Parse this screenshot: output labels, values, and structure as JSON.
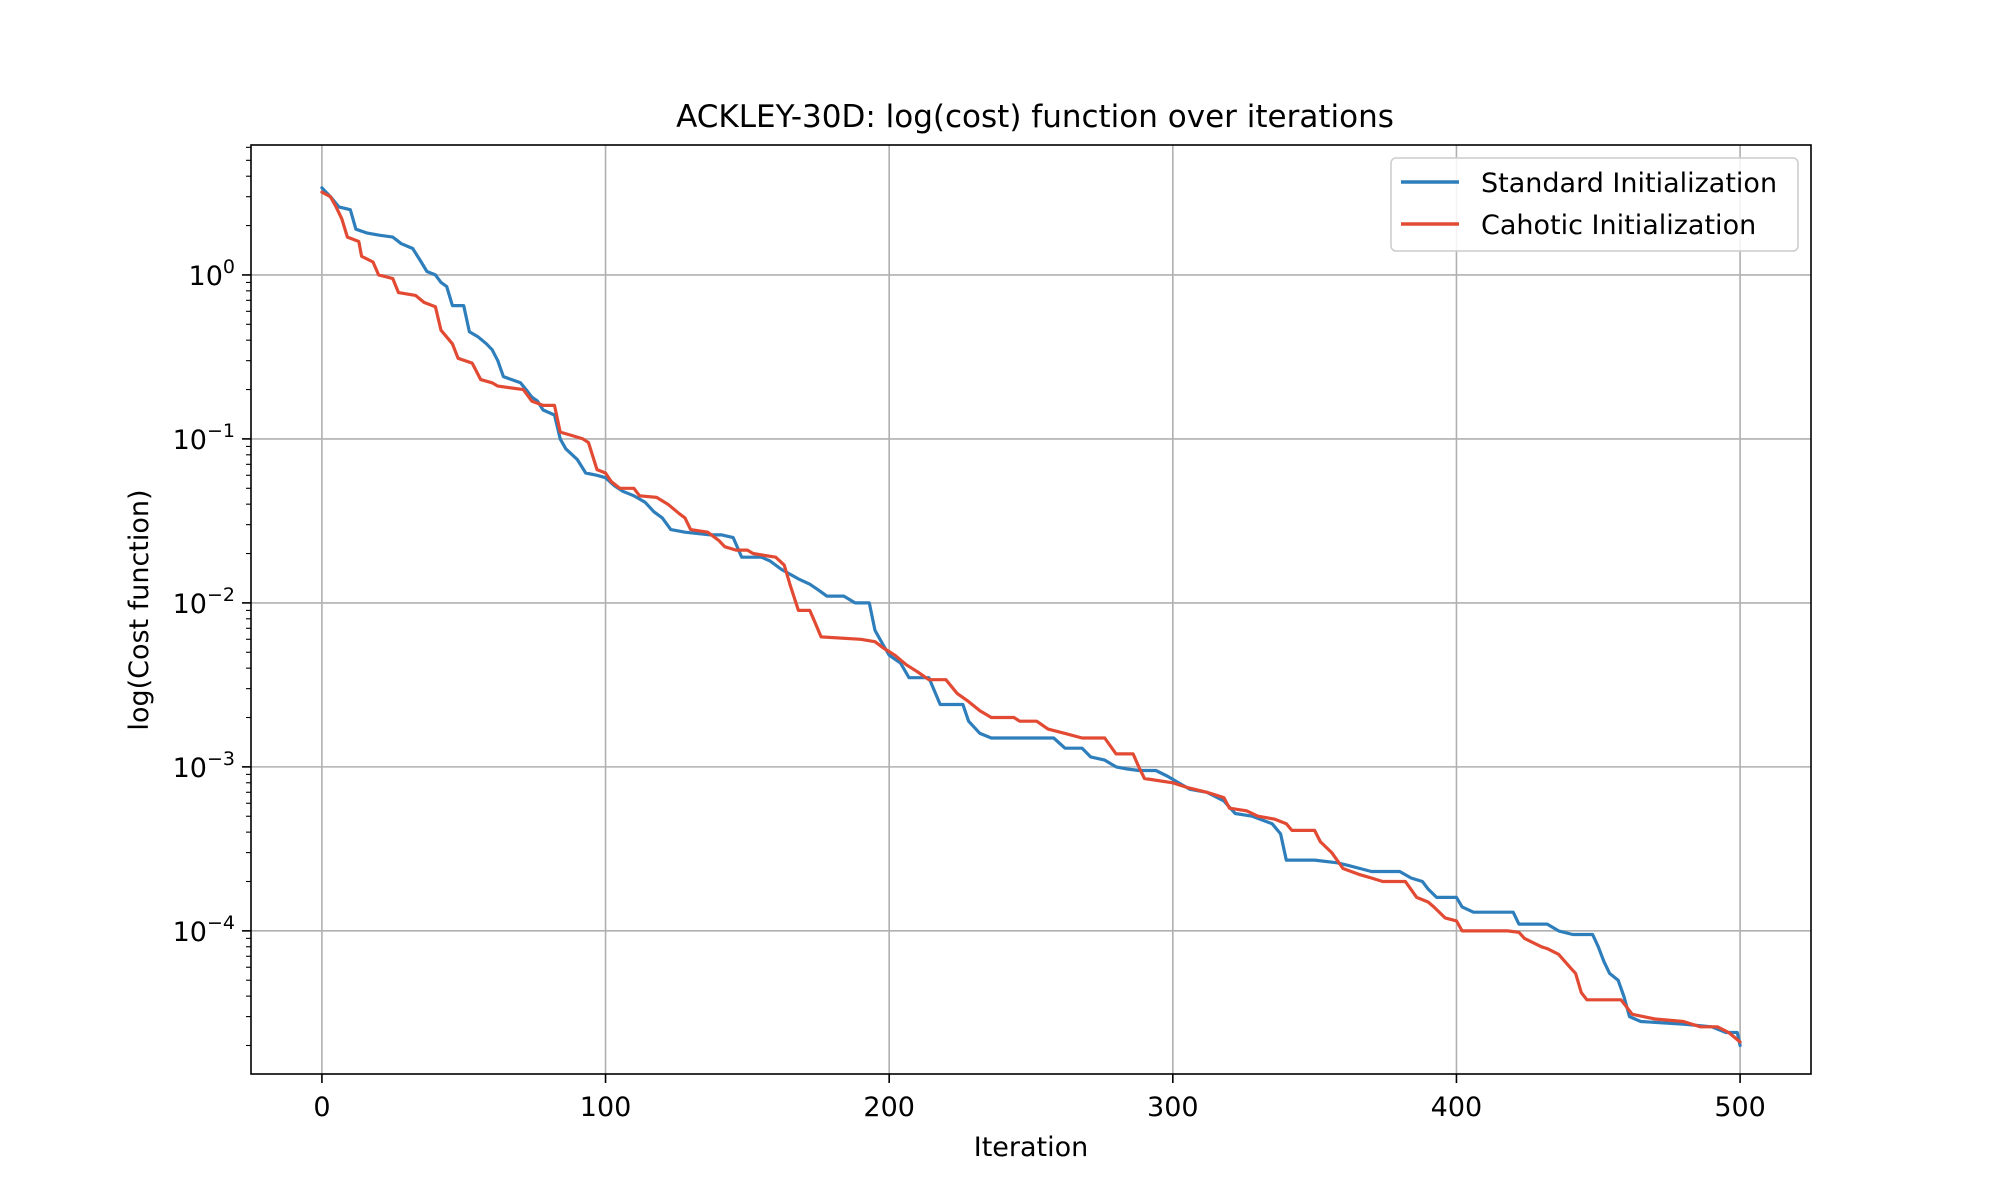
{
  "chart_data": {
    "type": "line",
    "title": "ACKLEY-30D: log(cost) function over iterations",
    "xlabel": "Iteration",
    "ylabel": "log(Cost function)",
    "yscale": "log",
    "xlim": [
      -25,
      525
    ],
    "ylim": [
      1.34e-05,
      6.2
    ],
    "xticks": [
      0,
      100,
      200,
      300,
      400,
      500
    ],
    "xtick_labels": [
      "0",
      "100",
      "200",
      "300",
      "400",
      "500"
    ],
    "yticks": [
      1,
      0.1,
      0.01,
      0.001,
      0.0001
    ],
    "ytick_labels": [
      {
        "base": "10",
        "exp": "0"
      },
      {
        "base": "10",
        "exp": "−1"
      },
      {
        "base": "10",
        "exp": "−2"
      },
      {
        "base": "10",
        "exp": "−3"
      },
      {
        "base": "10",
        "exp": "−4"
      }
    ],
    "grid": true,
    "legend_position": "top-right",
    "series": [
      {
        "name": "Standard Initialization",
        "color": "#2e7ebc",
        "points": [
          [
            0,
            3.4
          ],
          [
            3,
            3.0
          ],
          [
            6,
            2.6
          ],
          [
            10,
            2.5
          ],
          [
            12,
            1.9
          ],
          [
            16,
            1.8
          ],
          [
            20,
            1.75
          ],
          [
            25,
            1.7
          ],
          [
            28,
            1.55
          ],
          [
            32,
            1.45
          ],
          [
            35,
            1.2
          ],
          [
            37,
            1.05
          ],
          [
            40,
            1.0
          ],
          [
            42,
            0.9
          ],
          [
            44,
            0.85
          ],
          [
            46,
            0.65
          ],
          [
            50,
            0.65
          ],
          [
            52,
            0.45
          ],
          [
            55,
            0.42
          ],
          [
            58,
            0.38
          ],
          [
            60,
            0.35
          ],
          [
            62,
            0.3
          ],
          [
            64,
            0.24
          ],
          [
            70,
            0.22
          ],
          [
            72,
            0.2
          ],
          [
            74,
            0.18
          ],
          [
            76,
            0.17
          ],
          [
            78,
            0.15
          ],
          [
            82,
            0.14
          ],
          [
            84,
            0.1
          ],
          [
            86,
            0.087
          ],
          [
            90,
            0.075
          ],
          [
            93,
            0.062
          ],
          [
            97,
            0.06
          ],
          [
            100,
            0.058
          ],
          [
            103,
            0.052
          ],
          [
            106,
            0.048
          ],
          [
            110,
            0.045
          ],
          [
            114,
            0.041
          ],
          [
            117,
            0.036
          ],
          [
            120,
            0.033
          ],
          [
            123,
            0.028
          ],
          [
            128,
            0.027
          ],
          [
            137,
            0.026
          ],
          [
            141,
            0.026
          ],
          [
            145,
            0.025
          ],
          [
            148,
            0.019
          ],
          [
            155,
            0.019
          ],
          [
            158,
            0.018
          ],
          [
            162,
            0.016
          ],
          [
            168,
            0.014
          ],
          [
            172,
            0.013
          ],
          [
            175,
            0.012
          ],
          [
            178,
            0.011
          ],
          [
            184,
            0.011
          ],
          [
            188,
            0.01
          ],
          [
            193,
            0.01
          ],
          [
            195,
            0.0068
          ],
          [
            198,
            0.0055
          ],
          [
            200,
            0.0048
          ],
          [
            204,
            0.0043
          ],
          [
            207,
            0.0035
          ],
          [
            214,
            0.0035
          ],
          [
            218,
            0.0024
          ],
          [
            226,
            0.0024
          ],
          [
            228,
            0.0019
          ],
          [
            232,
            0.0016
          ],
          [
            236,
            0.0015
          ],
          [
            240,
            0.0015
          ],
          [
            244,
            0.0015
          ],
          [
            248,
            0.0015
          ],
          [
            258,
            0.0015
          ],
          [
            262,
            0.0013
          ],
          [
            268,
            0.0013
          ],
          [
            271,
            0.00115
          ],
          [
            276,
            0.0011
          ],
          [
            280,
            0.001
          ],
          [
            284,
            0.00097
          ],
          [
            288,
            0.00095
          ],
          [
            294,
            0.00095
          ],
          [
            298,
            0.00088
          ],
          [
            302,
            0.0008
          ],
          [
            306,
            0.00073
          ],
          [
            312,
            0.0007
          ],
          [
            318,
            0.00062
          ],
          [
            322,
            0.00052
          ],
          [
            328,
            0.0005
          ],
          [
            335,
            0.00045
          ],
          [
            338,
            0.00039
          ],
          [
            340,
            0.00027
          ],
          [
            350,
            0.00027
          ],
          [
            358,
            0.00026
          ],
          [
            362,
            0.00025
          ],
          [
            366,
            0.00024
          ],
          [
            370,
            0.00023
          ],
          [
            380,
            0.00023
          ],
          [
            384,
            0.00021
          ],
          [
            388,
            0.0002
          ],
          [
            390,
            0.00018
          ],
          [
            393,
            0.00016
          ],
          [
            398,
            0.00016
          ],
          [
            400,
            0.00016
          ],
          [
            402,
            0.00014
          ],
          [
            406,
            0.00013
          ],
          [
            420,
            0.00013
          ],
          [
            422,
            0.00011
          ],
          [
            432,
            0.00011
          ],
          [
            436,
            0.0001
          ],
          [
            441,
            9.5e-05
          ],
          [
            448,
            9.5e-05
          ],
          [
            450,
            8e-05
          ],
          [
            452,
            6.5e-05
          ],
          [
            454,
            5.5e-05
          ],
          [
            457,
            5e-05
          ],
          [
            459,
            4e-05
          ],
          [
            461,
            3e-05
          ],
          [
            465,
            2.8e-05
          ],
          [
            480,
            2.7e-05
          ],
          [
            490,
            2.6e-05
          ],
          [
            495,
            2.4e-05
          ],
          [
            499,
            2.4e-05
          ],
          [
            500,
            2e-05
          ]
        ]
      },
      {
        "name": "Cahotic Initialization",
        "color": "#e24a33",
        "points": [
          [
            0,
            3.2
          ],
          [
            3,
            3.0
          ],
          [
            5,
            2.6
          ],
          [
            7,
            2.2
          ],
          [
            9,
            1.7
          ],
          [
            13,
            1.6
          ],
          [
            14,
            1.3
          ],
          [
            18,
            1.2
          ],
          [
            20,
            1.0
          ],
          [
            25,
            0.95
          ],
          [
            27,
            0.78
          ],
          [
            33,
            0.75
          ],
          [
            36,
            0.68
          ],
          [
            40,
            0.64
          ],
          [
            42,
            0.46
          ],
          [
            46,
            0.38
          ],
          [
            48,
            0.31
          ],
          [
            53,
            0.29
          ],
          [
            56,
            0.23
          ],
          [
            60,
            0.22
          ],
          [
            62,
            0.21
          ],
          [
            71,
            0.2
          ],
          [
            74,
            0.17
          ],
          [
            78,
            0.16
          ],
          [
            82,
            0.16
          ],
          [
            84,
            0.11
          ],
          [
            88,
            0.105
          ],
          [
            92,
            0.1
          ],
          [
            94,
            0.095
          ],
          [
            97,
            0.065
          ],
          [
            100,
            0.062
          ],
          [
            102,
            0.055
          ],
          [
            105,
            0.05
          ],
          [
            110,
            0.05
          ],
          [
            112,
            0.045
          ],
          [
            118,
            0.044
          ],
          [
            122,
            0.04
          ],
          [
            126,
            0.035
          ],
          [
            128,
            0.033
          ],
          [
            130,
            0.028
          ],
          [
            136,
            0.027
          ],
          [
            140,
            0.024
          ],
          [
            142,
            0.022
          ],
          [
            146,
            0.021
          ],
          [
            150,
            0.021
          ],
          [
            152,
            0.02
          ],
          [
            160,
            0.019
          ],
          [
            163,
            0.017
          ],
          [
            165,
            0.013
          ],
          [
            168,
            0.009
          ],
          [
            172,
            0.009
          ],
          [
            174,
            0.0075
          ],
          [
            176,
            0.0062
          ],
          [
            190,
            0.006
          ],
          [
            195,
            0.0058
          ],
          [
            198,
            0.0053
          ],
          [
            202,
            0.0048
          ],
          [
            206,
            0.0042
          ],
          [
            210,
            0.0038
          ],
          [
            214,
            0.0034
          ],
          [
            220,
            0.0034
          ],
          [
            224,
            0.0028
          ],
          [
            228,
            0.0025
          ],
          [
            232,
            0.0022
          ],
          [
            236,
            0.002
          ],
          [
            240,
            0.002
          ],
          [
            244,
            0.002
          ],
          [
            246,
            0.0019
          ],
          [
            252,
            0.0019
          ],
          [
            256,
            0.0017
          ],
          [
            262,
            0.0016
          ],
          [
            268,
            0.0015
          ],
          [
            276,
            0.0015
          ],
          [
            280,
            0.0012
          ],
          [
            286,
            0.0012
          ],
          [
            288,
            0.001
          ],
          [
            290,
            0.00085
          ],
          [
            300,
            0.0008
          ],
          [
            305,
            0.00075
          ],
          [
            312,
            0.0007
          ],
          [
            318,
            0.00065
          ],
          [
            320,
            0.00056
          ],
          [
            326,
            0.00054
          ],
          [
            330,
            0.0005
          ],
          [
            336,
            0.00048
          ],
          [
            340,
            0.00045
          ],
          [
            342,
            0.00041
          ],
          [
            350,
            0.00041
          ],
          [
            352,
            0.00035
          ],
          [
            356,
            0.0003
          ],
          [
            360,
            0.00024
          ],
          [
            366,
            0.00022
          ],
          [
            370,
            0.00021
          ],
          [
            374,
            0.0002
          ],
          [
            382,
            0.0002
          ],
          [
            386,
            0.00016
          ],
          [
            390,
            0.00015
          ],
          [
            392,
            0.00014
          ],
          [
            396,
            0.00012
          ],
          [
            400,
            0.000115
          ],
          [
            402,
            0.0001
          ],
          [
            410,
            0.0001
          ],
          [
            418,
            0.0001
          ],
          [
            422,
            9.8e-05
          ],
          [
            424,
            9e-05
          ],
          [
            430,
            8e-05
          ],
          [
            432,
            7.8e-05
          ],
          [
            436,
            7.2e-05
          ],
          [
            440,
            6e-05
          ],
          [
            442,
            5.5e-05
          ],
          [
            444,
            4.2e-05
          ],
          [
            446,
            3.8e-05
          ],
          [
            450,
            3.8e-05
          ],
          [
            458,
            3.8e-05
          ],
          [
            462,
            3.1e-05
          ],
          [
            470,
            2.9e-05
          ],
          [
            480,
            2.8e-05
          ],
          [
            486,
            2.6e-05
          ],
          [
            492,
            2.6e-05
          ],
          [
            496,
            2.4e-05
          ],
          [
            500,
            2.1e-05
          ]
        ]
      }
    ]
  }
}
